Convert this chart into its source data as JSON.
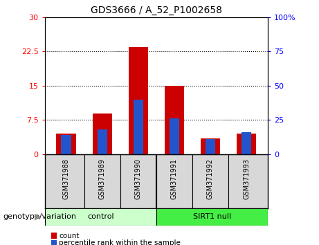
{
  "title": "GDS3666 / A_52_P1002658",
  "samples": [
    "GSM371988",
    "GSM371989",
    "GSM371990",
    "GSM371991",
    "GSM371992",
    "GSM371993"
  ],
  "count_values": [
    4.5,
    9.0,
    23.5,
    15.0,
    3.5,
    4.5
  ],
  "percentile_values": [
    14.0,
    18.0,
    40.0,
    26.0,
    11.0,
    16.0
  ],
  "left_ylim": [
    0,
    30
  ],
  "right_ylim": [
    0,
    100
  ],
  "left_yticks": [
    0,
    7.5,
    15,
    22.5,
    30
  ],
  "right_yticks": [
    0,
    25,
    50,
    75,
    100
  ],
  "left_yticklabels": [
    "0",
    "7.5",
    "15",
    "22.5",
    "30"
  ],
  "right_yticklabels": [
    "0",
    "25",
    "50",
    "75",
    "100%"
  ],
  "bar_color": "#cc0000",
  "pct_color": "#2255cc",
  "bar_width": 0.55,
  "pct_bar_width": 0.28,
  "group_labels": [
    "control",
    "SIRT1 null"
  ],
  "group_colors": [
    "#ccffcc",
    "#44ee44"
  ],
  "xlabel_label": "genotype/variation",
  "legend_count": "count",
  "legend_pct": "percentile rank within the sample",
  "bg_color": "#d8d8d8",
  "plot_bg": "#ffffff",
  "grid_yticks": [
    7.5,
    15,
    22.5
  ]
}
